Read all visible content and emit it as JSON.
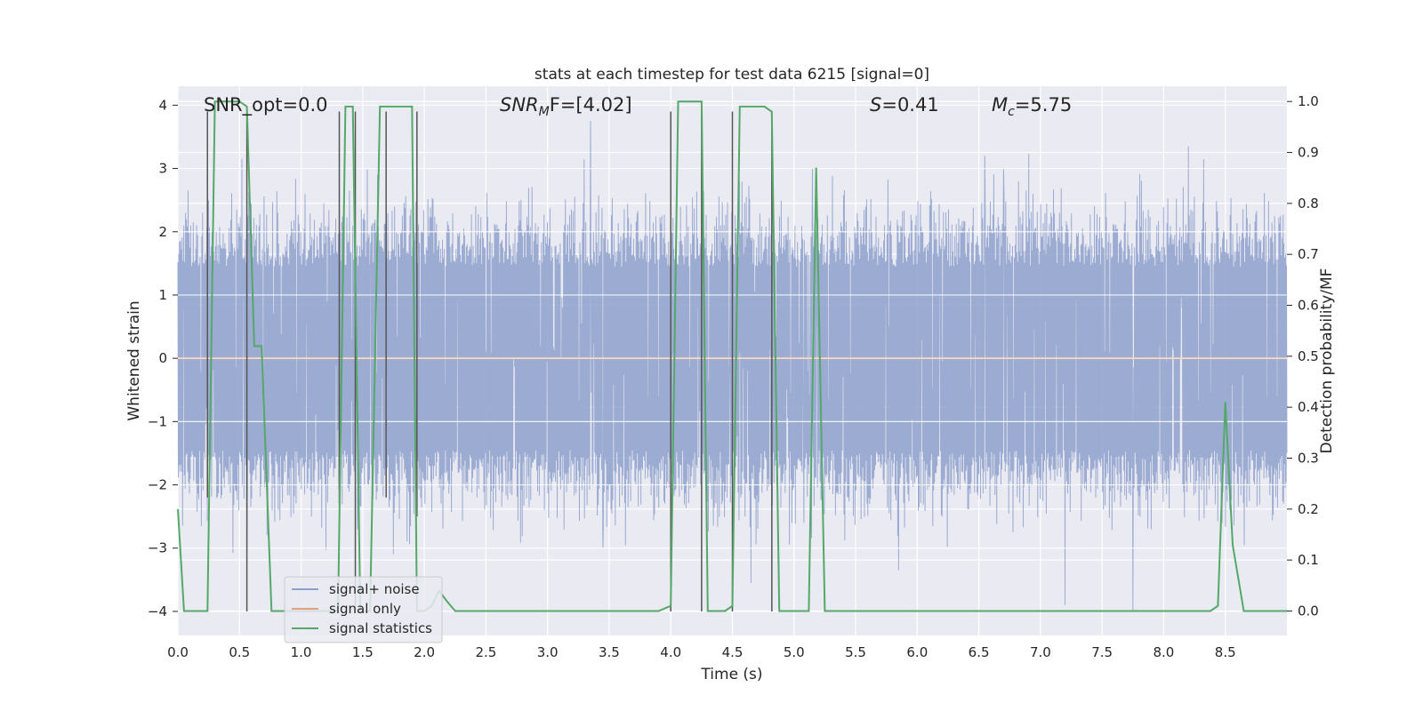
{
  "chart_data": {
    "type": "line",
    "title": "stats at each timestep for test data 6215 [signal=0]",
    "xlabel": "Time (s)",
    "ylabel_left": "Whitened strain",
    "ylabel_right": "Detection probability/MF",
    "xlim": [
      0.0,
      9.0
    ],
    "ylim_left": [
      -4.38,
      4.3
    ],
    "ylim_right": [
      -0.048,
      1.03
    ],
    "x_ticks": [
      0.0,
      0.5,
      1.0,
      1.5,
      2.0,
      2.5,
      3.0,
      3.5,
      4.0,
      4.5,
      5.0,
      5.5,
      6.0,
      6.5,
      7.0,
      7.5,
      8.0,
      8.5
    ],
    "x_tick_labels": [
      "0.0",
      "0.5",
      "1.0",
      "1.5",
      "2.0",
      "2.5",
      "3.0",
      "3.5",
      "4.0",
      "4.5",
      "5.0",
      "5.5",
      "6.0",
      "6.5",
      "7.0",
      "7.5",
      "8.0",
      "8.5"
    ],
    "y_left_ticks": [
      4,
      3,
      2,
      1,
      0,
      -1,
      -2,
      -3,
      -4
    ],
    "y_left_tick_labels": [
      "4",
      "3",
      "2",
      "1",
      "0",
      "−1",
      "−2",
      "−3",
      "−4"
    ],
    "y_right_ticks": [
      1.0,
      0.9,
      0.8,
      0.7,
      0.6,
      0.5,
      0.4,
      0.3,
      0.2,
      0.1,
      0.0
    ],
    "y_right_tick_labels": [
      "1.0",
      "0.9",
      "0.8",
      "0.7",
      "0.6",
      "0.5",
      "0.4",
      "0.3",
      "0.2",
      "0.1",
      "0.0"
    ],
    "annotations": {
      "snr_opt": "SNR_opt=0.0",
      "snr_mf_sym": "SNR",
      "snr_mf_sub": "M",
      "snr_mf_rest": "F=[4.02]",
      "s_sym": "S",
      "s_rest": "=0.41",
      "mc_sym": "M",
      "mc_sub": "c",
      "mc_rest": "=5.75"
    },
    "legend": {
      "placement": "lower-left",
      "entries": [
        "signal+ noise",
        "signal only",
        "signal statistics"
      ]
    },
    "noise_series": {
      "name": "signal+ noise",
      "color": "#8da0cb",
      "x_range": [
        0.0,
        9.0
      ],
      "n_samples": 2600,
      "typical_envelope": 1.6,
      "notable_peaks": [
        {
          "x": 0.25,
          "y": 2.5
        },
        {
          "x": 0.52,
          "y": 3.15
        },
        {
          "x": 0.56,
          "y": -2.95
        },
        {
          "x": 1.35,
          "y": 2.65
        },
        {
          "x": 1.62,
          "y": 2.9
        },
        {
          "x": 3.35,
          "y": 3.75
        },
        {
          "x": 3.45,
          "y": -3.0
        },
        {
          "x": 4.65,
          "y": -3.55
        },
        {
          "x": 5.15,
          "y": 3.0
        },
        {
          "x": 5.85,
          "y": -3.35
        },
        {
          "x": 6.55,
          "y": 3.2
        },
        {
          "x": 6.7,
          "y": 3.0
        },
        {
          "x": 7.2,
          "y": -3.9
        },
        {
          "x": 7.75,
          "y": -4.0
        },
        {
          "x": 8.2,
          "y": 3.35
        }
      ]
    },
    "signal_only": {
      "name": "signal only",
      "color": "#e1a07e",
      "x": [
        0.0,
        9.0
      ],
      "y": [
        0.0,
        0.0
      ]
    },
    "statistics": {
      "name": "signal statistics",
      "color": "#55a868",
      "x": [
        0.0,
        0.05,
        0.24,
        0.3,
        0.5,
        0.56,
        0.62,
        0.68,
        0.76,
        0.9,
        1.3,
        1.36,
        1.42,
        1.48,
        1.56,
        1.64,
        1.7,
        1.78,
        1.9,
        1.94,
        2.0,
        2.06,
        2.12,
        2.18,
        2.25,
        2.5,
        2.6,
        3.5,
        3.9,
        4.0,
        4.06,
        4.25,
        4.3,
        4.38,
        4.44,
        4.5,
        4.56,
        4.76,
        4.82,
        4.88,
        5.06,
        5.12,
        5.18,
        5.25,
        5.32,
        5.38,
        8.0,
        8.38,
        8.44,
        8.5,
        8.56,
        8.65,
        8.72,
        9.0
      ],
      "y": [
        0.2,
        0.0,
        0.0,
        1.0,
        1.0,
        0.99,
        0.52,
        0.52,
        0.0,
        0.0,
        0.0,
        0.99,
        0.99,
        0.0,
        0.0,
        0.99,
        0.99,
        0.99,
        0.99,
        0.0,
        0.0,
        0.01,
        0.04,
        0.02,
        0.0,
        0.0,
        0.0,
        0.0,
        0.0,
        0.01,
        1.0,
        1.0,
        0.0,
        0.0,
        0.0,
        0.01,
        0.99,
        0.99,
        0.98,
        0.0,
        0.0,
        0.0,
        0.87,
        0.0,
        0.0,
        0.0,
        0.0,
        0.0,
        0.01,
        0.41,
        0.13,
        0.0,
        0.0,
        0.0
      ]
    },
    "event_markers": {
      "color": "#555555",
      "lines": [
        {
          "x": 0.24,
          "top": 3.9,
          "bottom": -2.2
        },
        {
          "x": 0.56,
          "top": 3.9,
          "bottom": -4.0
        },
        {
          "x": 1.31,
          "top": 3.9,
          "bottom": -2.3
        },
        {
          "x": 1.44,
          "top": 3.9,
          "bottom": -4.0
        },
        {
          "x": 1.69,
          "top": 3.9,
          "bottom": -2.2
        },
        {
          "x": 1.94,
          "top": 3.9,
          "bottom": -2.5
        },
        {
          "x": 4.0,
          "top": 3.9,
          "bottom": -4.0
        },
        {
          "x": 4.25,
          "top": 3.9,
          "bottom": -4.0
        },
        {
          "x": 4.5,
          "top": 3.9,
          "bottom": -4.0
        },
        {
          "x": 4.82,
          "top": 3.9,
          "bottom": -4.0
        }
      ]
    }
  }
}
